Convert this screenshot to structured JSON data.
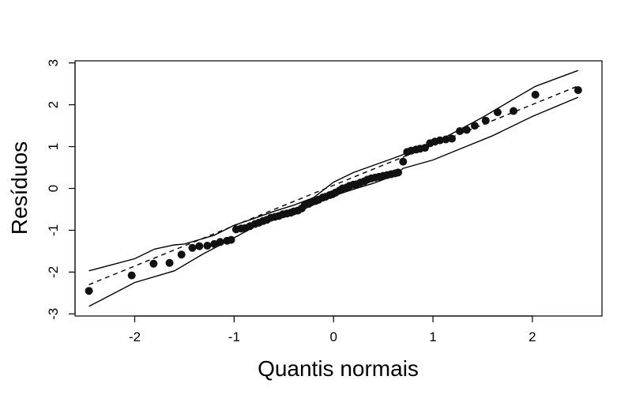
{
  "chart_data": {
    "type": "scatter",
    "title": "",
    "xlabel": "Quantis normais",
    "ylabel": "Resíduos",
    "xlim": [
      -2.6,
      2.7
    ],
    "ylim": [
      -3.05,
      3.05
    ],
    "x_ticks": [
      -2,
      -1,
      0,
      1,
      2
    ],
    "y_ticks": [
      -3,
      -2,
      -1,
      0,
      1,
      2,
      3
    ],
    "x_tick_labels": [
      "-2",
      "-1",
      "0",
      "1",
      "2"
    ],
    "y_tick_labels": [
      "-3",
      "-2",
      "-1",
      "0",
      "1",
      "2",
      "3"
    ],
    "grid": false,
    "points": [
      [
        -2.46,
        -2.45
      ],
      [
        -2.03,
        -2.08
      ],
      [
        -1.81,
        -1.8
      ],
      [
        -1.65,
        -1.78
      ],
      [
        -1.53,
        -1.58
      ],
      [
        -1.42,
        -1.42
      ],
      [
        -1.35,
        -1.38
      ],
      [
        -1.27,
        -1.37
      ],
      [
        -1.2,
        -1.33
      ],
      [
        -1.14,
        -1.28
      ],
      [
        -1.07,
        -1.25
      ],
      [
        -1.03,
        -1.23
      ],
      [
        -0.98,
        -0.98
      ],
      [
        -0.93,
        -0.96
      ],
      [
        -0.89,
        -0.95
      ],
      [
        -0.84,
        -0.9
      ],
      [
        -0.79,
        -0.85
      ],
      [
        -0.75,
        -0.82
      ],
      [
        -0.71,
        -0.78
      ],
      [
        -0.67,
        -0.75
      ],
      [
        -0.63,
        -0.7
      ],
      [
        -0.59,
        -0.68
      ],
      [
        -0.55,
        -0.66
      ],
      [
        -0.51,
        -0.62
      ],
      [
        -0.47,
        -0.6
      ],
      [
        -0.43,
        -0.58
      ],
      [
        -0.4,
        -0.55
      ],
      [
        -0.36,
        -0.53
      ],
      [
        -0.32,
        -0.48
      ],
      [
        -0.29,
        -0.4
      ],
      [
        -0.25,
        -0.37
      ],
      [
        -0.22,
        -0.33
      ],
      [
        -0.18,
        -0.3
      ],
      [
        -0.15,
        -0.27
      ],
      [
        -0.11,
        -0.22
      ],
      [
        -0.08,
        -0.2
      ],
      [
        -0.04,
        -0.16
      ],
      [
        -0.01,
        -0.14
      ],
      [
        0.02,
        -0.1
      ],
      [
        0.06,
        -0.05
      ],
      [
        0.09,
        0.0
      ],
      [
        0.13,
        0.02
      ],
      [
        0.16,
        0.06
      ],
      [
        0.2,
        0.09
      ],
      [
        0.23,
        0.1
      ],
      [
        0.27,
        0.14
      ],
      [
        0.31,
        0.17
      ],
      [
        0.34,
        0.21
      ],
      [
        0.38,
        0.24
      ],
      [
        0.42,
        0.26
      ],
      [
        0.46,
        0.28
      ],
      [
        0.5,
        0.3
      ],
      [
        0.54,
        0.32
      ],
      [
        0.58,
        0.34
      ],
      [
        0.62,
        0.36
      ],
      [
        0.65,
        0.38
      ],
      [
        0.7,
        0.64
      ],
      [
        0.74,
        0.87
      ],
      [
        0.78,
        0.9
      ],
      [
        0.83,
        0.93
      ],
      [
        0.87,
        0.95
      ],
      [
        0.92,
        0.97
      ],
      [
        0.97,
        1.08
      ],
      [
        1.02,
        1.12
      ],
      [
        1.07,
        1.15
      ],
      [
        1.13,
        1.17
      ],
      [
        1.19,
        1.19
      ],
      [
        1.27,
        1.37
      ],
      [
        1.34,
        1.4
      ],
      [
        1.42,
        1.5
      ],
      [
        1.53,
        1.62
      ],
      [
        1.65,
        1.82
      ],
      [
        1.81,
        1.85
      ],
      [
        2.03,
        2.24
      ],
      [
        2.46,
        2.35
      ]
    ],
    "reference_line": {
      "x": [
        -2.46,
        2.46
      ],
      "y": [
        -2.3,
        2.45
      ]
    },
    "envelope_upper": {
      "x": [
        -2.46,
        -2.0,
        -1.8,
        -1.6,
        -1.5,
        -1.2,
        -1.0,
        -0.8,
        -0.6,
        -0.4,
        -0.2,
        0.0,
        0.2,
        0.4,
        0.6,
        0.8,
        1.0,
        1.2,
        1.5,
        1.8,
        2.03,
        2.46
      ],
      "y": [
        -1.97,
        -1.68,
        -1.45,
        -1.35,
        -1.33,
        -1.12,
        -0.88,
        -0.72,
        -0.55,
        -0.4,
        -0.22,
        0.15,
        0.38,
        0.55,
        0.72,
        0.9,
        1.07,
        1.32,
        1.7,
        2.12,
        2.44,
        2.82
      ]
    },
    "envelope_lower": {
      "x": [
        -2.46,
        -2.0,
        -1.6,
        -1.3,
        -1.0,
        -0.8,
        -0.6,
        -0.4,
        -0.2,
        0.0,
        0.2,
        0.4,
        0.6,
        0.7,
        1.0,
        1.3,
        1.6,
        2.0,
        2.46
      ],
      "y": [
        -2.82,
        -2.25,
        -1.97,
        -1.55,
        -1.18,
        -0.92,
        -0.72,
        -0.52,
        -0.35,
        -0.18,
        -0.02,
        0.12,
        0.3,
        0.48,
        0.68,
        0.97,
        1.26,
        1.72,
        2.18
      ]
    }
  }
}
